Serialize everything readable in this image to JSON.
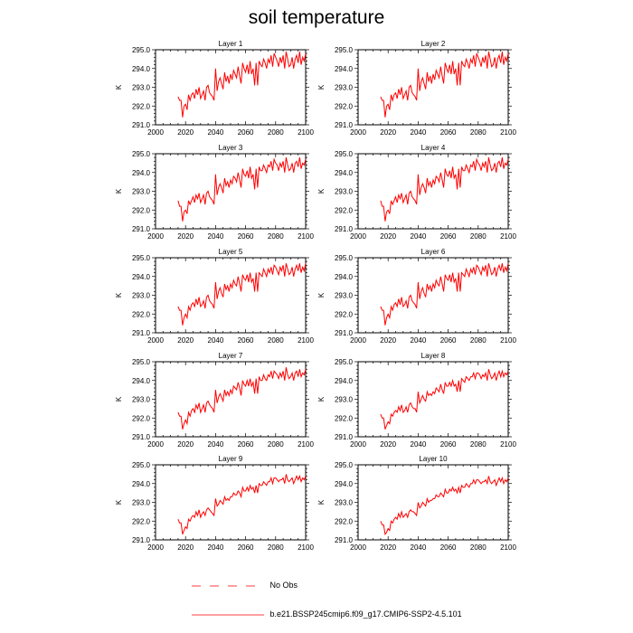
{
  "title": "soil temperature",
  "legend": {
    "obs_label": "No Obs",
    "model_label": "b.e21.BSSP245cmip6.f09_g17.CMIP6-SSP2-4.5.101",
    "model_color": "#ff0000",
    "obs_color": "#ff0000"
  },
  "chart_data": {
    "type": "line",
    "ylabel": "K",
    "xlim": [
      2000,
      2100
    ],
    "ylim": [
      291.0,
      295.0
    ],
    "x_ticks": [
      "2000",
      "2020",
      "2040",
      "2060",
      "2080",
      "2100"
    ],
    "y_ticks": [
      "291.0",
      "292.0",
      "293.0",
      "294.0",
      "295.0"
    ],
    "grid": false,
    "line_color": "#ff0000",
    "x": [
      2015,
      2016,
      2017,
      2018,
      2019,
      2020,
      2021,
      2022,
      2023,
      2024,
      2025,
      2026,
      2027,
      2028,
      2029,
      2030,
      2031,
      2032,
      2033,
      2034,
      2035,
      2036,
      2037,
      2038,
      2039,
      2040,
      2041,
      2042,
      2043,
      2044,
      2045,
      2046,
      2047,
      2048,
      2049,
      2050,
      2051,
      2052,
      2053,
      2054,
      2055,
      2056,
      2057,
      2058,
      2059,
      2060,
      2061,
      2062,
      2063,
      2064,
      2065,
      2066,
      2067,
      2068,
      2069,
      2070,
      2071,
      2072,
      2073,
      2074,
      2075,
      2076,
      2077,
      2078,
      2079,
      2080,
      2081,
      2082,
      2083,
      2084,
      2085,
      2086,
      2087,
      2088,
      2089,
      2090,
      2091,
      2092,
      2093,
      2094,
      2095,
      2096,
      2097,
      2098,
      2099,
      2100
    ],
    "panels": [
      {
        "name": "Layer 1",
        "values": [
          292.5,
          292.3,
          292.3,
          291.4,
          292.0,
          292.1,
          291.8,
          292.6,
          292.3,
          292.6,
          292.7,
          292.4,
          292.9,
          292.6,
          293.0,
          292.4,
          292.6,
          292.8,
          292.3,
          293.0,
          293.1,
          292.7,
          292.6,
          292.5,
          292.3,
          294.0,
          292.8,
          293.3,
          293.5,
          293.2,
          292.9,
          293.8,
          293.3,
          293.6,
          293.2,
          293.7,
          293.4,
          293.9,
          293.7,
          293.5,
          294.1,
          293.6,
          293.2,
          294.3,
          294.0,
          293.8,
          294.2,
          293.7,
          294.4,
          293.7,
          294.0,
          293.1,
          294.3,
          293.1,
          294.4,
          294.2,
          294.1,
          294.5,
          294.3,
          294.0,
          294.5,
          294.3,
          294.7,
          294.1,
          294.8,
          294.6,
          294.4,
          294.1,
          294.6,
          294.3,
          294.7,
          294.0,
          294.9,
          294.5,
          294.1,
          294.2,
          294.6,
          294.0,
          294.5,
          294.7,
          294.3,
          294.9,
          294.2,
          294.6,
          294.4,
          294.8
        ]
      },
      {
        "name": "Layer 2",
        "values": [
          292.5,
          292.3,
          292.3,
          291.4,
          292.0,
          292.1,
          291.8,
          292.6,
          292.3,
          292.6,
          292.7,
          292.4,
          292.9,
          292.6,
          293.0,
          292.4,
          292.6,
          292.8,
          292.3,
          293.0,
          293.1,
          292.7,
          292.6,
          292.5,
          292.3,
          294.0,
          292.8,
          293.3,
          293.5,
          293.2,
          292.9,
          293.8,
          293.3,
          293.6,
          293.2,
          293.7,
          293.4,
          293.9,
          293.7,
          293.5,
          294.1,
          293.6,
          293.2,
          294.3,
          294.0,
          293.8,
          294.2,
          293.7,
          294.4,
          293.7,
          294.0,
          293.1,
          294.3,
          293.1,
          294.4,
          294.2,
          294.1,
          294.5,
          294.3,
          294.0,
          294.5,
          294.3,
          294.7,
          294.1,
          294.8,
          294.6,
          294.4,
          294.1,
          294.6,
          294.3,
          294.7,
          294.0,
          294.9,
          294.5,
          294.1,
          294.2,
          294.6,
          294.0,
          294.5,
          294.7,
          294.3,
          294.9,
          294.2,
          294.6,
          294.4,
          294.8
        ]
      },
      {
        "name": "Layer 3",
        "values": [
          292.5,
          292.2,
          292.2,
          291.4,
          291.9,
          292.0,
          291.8,
          292.5,
          292.3,
          292.5,
          292.7,
          292.4,
          292.8,
          292.6,
          292.9,
          292.4,
          292.6,
          292.8,
          292.3,
          292.9,
          293.0,
          292.7,
          292.6,
          292.5,
          292.3,
          293.9,
          292.8,
          293.2,
          293.4,
          293.2,
          292.9,
          293.7,
          293.3,
          293.5,
          293.2,
          293.6,
          293.4,
          293.8,
          293.7,
          293.5,
          294.0,
          293.6,
          293.2,
          294.2,
          293.9,
          293.8,
          294.1,
          293.7,
          294.3,
          293.7,
          293.9,
          293.1,
          294.2,
          293.2,
          294.3,
          294.1,
          294.1,
          294.4,
          294.2,
          294.0,
          294.4,
          294.3,
          294.6,
          294.1,
          294.7,
          294.5,
          294.4,
          294.1,
          294.5,
          294.3,
          294.6,
          294.0,
          294.8,
          294.4,
          294.1,
          294.2,
          294.5,
          294.0,
          294.5,
          294.6,
          294.3,
          294.8,
          294.2,
          294.5,
          294.4,
          294.7
        ]
      },
      {
        "name": "Layer 4",
        "values": [
          292.5,
          292.2,
          292.2,
          291.4,
          291.9,
          292.0,
          291.8,
          292.5,
          292.3,
          292.5,
          292.7,
          292.4,
          292.8,
          292.6,
          292.9,
          292.4,
          292.6,
          292.8,
          292.3,
          292.9,
          293.0,
          292.7,
          292.6,
          292.5,
          292.3,
          293.9,
          292.8,
          293.2,
          293.4,
          293.2,
          292.9,
          293.7,
          293.3,
          293.5,
          293.2,
          293.6,
          293.4,
          293.8,
          293.7,
          293.5,
          294.0,
          293.6,
          293.2,
          294.2,
          293.9,
          293.8,
          294.1,
          293.7,
          294.3,
          293.7,
          293.9,
          293.1,
          294.2,
          293.2,
          294.3,
          294.1,
          294.1,
          294.4,
          294.2,
          294.0,
          294.4,
          294.3,
          294.6,
          294.1,
          294.7,
          294.5,
          294.4,
          294.1,
          294.5,
          294.3,
          294.6,
          294.0,
          294.8,
          294.4,
          294.1,
          294.2,
          294.5,
          294.0,
          294.5,
          294.6,
          294.3,
          294.8,
          294.2,
          294.5,
          294.4,
          294.7
        ]
      },
      {
        "name": "Layer 5",
        "values": [
          292.4,
          292.2,
          292.2,
          291.4,
          291.8,
          292.0,
          291.8,
          292.4,
          292.2,
          292.5,
          292.6,
          292.4,
          292.8,
          292.5,
          292.9,
          292.4,
          292.5,
          292.7,
          292.3,
          292.9,
          293.0,
          292.7,
          292.6,
          292.5,
          292.3,
          293.7,
          292.8,
          293.2,
          293.4,
          293.1,
          292.9,
          293.6,
          293.3,
          293.5,
          293.2,
          293.6,
          293.4,
          293.8,
          293.6,
          293.5,
          294.0,
          293.6,
          293.2,
          294.1,
          293.9,
          293.8,
          294.1,
          293.7,
          294.2,
          293.7,
          293.9,
          293.2,
          294.2,
          293.2,
          294.2,
          294.1,
          294.0,
          294.4,
          294.2,
          294.0,
          294.4,
          294.2,
          294.5,
          294.1,
          294.6,
          294.5,
          294.3,
          294.1,
          294.5,
          294.3,
          294.6,
          294.0,
          294.7,
          294.4,
          294.1,
          294.2,
          294.5,
          294.0,
          294.4,
          294.6,
          294.3,
          294.7,
          294.2,
          294.5,
          294.3,
          294.7
        ]
      },
      {
        "name": "Layer 6",
        "values": [
          292.4,
          292.2,
          292.2,
          291.4,
          291.8,
          292.0,
          291.8,
          292.4,
          292.2,
          292.5,
          292.6,
          292.4,
          292.8,
          292.5,
          292.9,
          292.4,
          292.5,
          292.7,
          292.3,
          292.9,
          293.0,
          292.7,
          292.6,
          292.5,
          292.3,
          293.7,
          292.8,
          293.2,
          293.4,
          293.1,
          292.9,
          293.6,
          293.3,
          293.5,
          293.2,
          293.6,
          293.4,
          293.8,
          293.6,
          293.5,
          294.0,
          293.6,
          293.2,
          294.1,
          293.9,
          293.8,
          294.1,
          293.7,
          294.2,
          293.7,
          293.9,
          293.2,
          294.2,
          293.2,
          294.2,
          294.1,
          294.0,
          294.4,
          294.2,
          294.0,
          294.4,
          294.2,
          294.5,
          294.1,
          294.6,
          294.5,
          294.3,
          294.1,
          294.5,
          294.3,
          294.6,
          294.0,
          294.7,
          294.4,
          294.1,
          294.2,
          294.5,
          294.0,
          294.4,
          294.6,
          294.3,
          294.7,
          294.2,
          294.5,
          294.3,
          294.7
        ]
      },
      {
        "name": "Layer 7",
        "values": [
          292.3,
          292.1,
          292.1,
          291.4,
          291.7,
          291.9,
          291.7,
          292.3,
          292.1,
          292.4,
          292.5,
          292.3,
          292.7,
          292.5,
          292.8,
          292.3,
          292.5,
          292.7,
          292.3,
          292.8,
          292.9,
          292.7,
          292.6,
          292.5,
          292.3,
          293.5,
          292.8,
          293.1,
          293.3,
          293.1,
          292.9,
          293.5,
          293.2,
          293.4,
          293.2,
          293.5,
          293.3,
          293.7,
          293.6,
          293.5,
          293.9,
          293.6,
          293.2,
          294.0,
          293.8,
          293.7,
          294.0,
          293.7,
          294.1,
          293.7,
          293.9,
          293.3,
          294.1,
          293.3,
          294.2,
          294.0,
          294.0,
          294.3,
          294.1,
          294.0,
          294.3,
          294.2,
          294.5,
          294.1,
          294.5,
          294.4,
          294.3,
          294.1,
          294.4,
          294.2,
          294.5,
          294.0,
          294.7,
          294.3,
          294.1,
          294.2,
          294.4,
          294.0,
          294.4,
          294.5,
          294.2,
          294.6,
          294.2,
          294.4,
          294.3,
          294.6
        ]
      },
      {
        "name": "Layer 8",
        "values": [
          292.2,
          292.0,
          292.0,
          291.4,
          291.6,
          291.8,
          291.7,
          292.2,
          292.1,
          292.3,
          292.4,
          292.3,
          292.6,
          292.4,
          292.7,
          292.3,
          292.4,
          292.6,
          292.3,
          292.7,
          292.8,
          292.6,
          292.5,
          292.5,
          292.3,
          293.4,
          292.8,
          293.0,
          293.2,
          293.0,
          292.9,
          293.4,
          293.2,
          293.3,
          293.2,
          293.4,
          293.3,
          293.6,
          293.5,
          293.4,
          293.8,
          293.5,
          293.3,
          293.9,
          293.7,
          293.7,
          293.9,
          293.7,
          294.0,
          293.7,
          293.8,
          293.4,
          294.0,
          293.4,
          294.1,
          294.0,
          293.9,
          294.2,
          294.1,
          294.0,
          294.2,
          294.2,
          294.4,
          294.1,
          294.4,
          294.4,
          294.3,
          294.1,
          294.3,
          294.2,
          294.4,
          294.0,
          294.6,
          294.3,
          294.1,
          294.2,
          294.4,
          294.0,
          294.3,
          294.5,
          294.2,
          294.5,
          294.2,
          294.4,
          294.3,
          294.5
        ]
      },
      {
        "name": "Layer 9",
        "values": [
          292.1,
          291.9,
          291.9,
          291.3,
          291.5,
          291.7,
          291.6,
          292.1,
          292.0,
          292.2,
          292.3,
          292.2,
          292.5,
          292.3,
          292.6,
          292.2,
          292.4,
          292.5,
          292.3,
          292.6,
          292.7,
          292.6,
          292.5,
          292.4,
          292.3,
          293.2,
          292.8,
          292.9,
          293.1,
          293.0,
          292.9,
          293.3,
          293.1,
          293.2,
          293.1,
          293.3,
          293.3,
          293.5,
          293.4,
          293.4,
          293.6,
          293.5,
          293.3,
          293.8,
          293.6,
          293.6,
          293.8,
          293.6,
          293.9,
          293.7,
          293.8,
          293.5,
          293.9,
          293.5,
          294.0,
          293.9,
          293.9,
          294.1,
          294.0,
          293.9,
          294.1,
          294.1,
          294.3,
          294.0,
          294.3,
          294.3,
          294.2,
          294.1,
          294.2,
          294.2,
          294.3,
          294.0,
          294.5,
          294.2,
          294.1,
          294.2,
          294.3,
          294.0,
          294.2,
          294.4,
          294.2,
          294.4,
          294.1,
          294.3,
          294.2,
          294.4
        ]
      },
      {
        "name": "Layer 10",
        "values": [
          292.0,
          291.8,
          291.8,
          291.3,
          291.4,
          291.6,
          291.5,
          292.0,
          291.9,
          292.1,
          292.2,
          292.1,
          292.4,
          292.2,
          292.5,
          292.2,
          292.3,
          292.4,
          292.2,
          292.5,
          292.6,
          292.5,
          292.5,
          292.4,
          292.3,
          293.0,
          292.7,
          292.8,
          293.0,
          292.9,
          292.8,
          293.2,
          293.0,
          293.1,
          293.1,
          293.2,
          293.2,
          293.4,
          293.3,
          293.3,
          293.5,
          293.4,
          293.3,
          293.7,
          293.5,
          293.5,
          293.7,
          293.6,
          293.8,
          293.6,
          293.7,
          293.5,
          293.8,
          293.5,
          293.9,
          293.8,
          293.8,
          294.0,
          293.9,
          293.8,
          294.0,
          294.0,
          294.2,
          294.0,
          294.2,
          294.2,
          294.1,
          294.0,
          294.1,
          294.1,
          294.2,
          294.0,
          294.4,
          294.1,
          294.0,
          294.1,
          294.2,
          293.9,
          294.1,
          294.3,
          294.1,
          294.3,
          294.0,
          294.2,
          294.1,
          294.3
        ]
      }
    ]
  }
}
